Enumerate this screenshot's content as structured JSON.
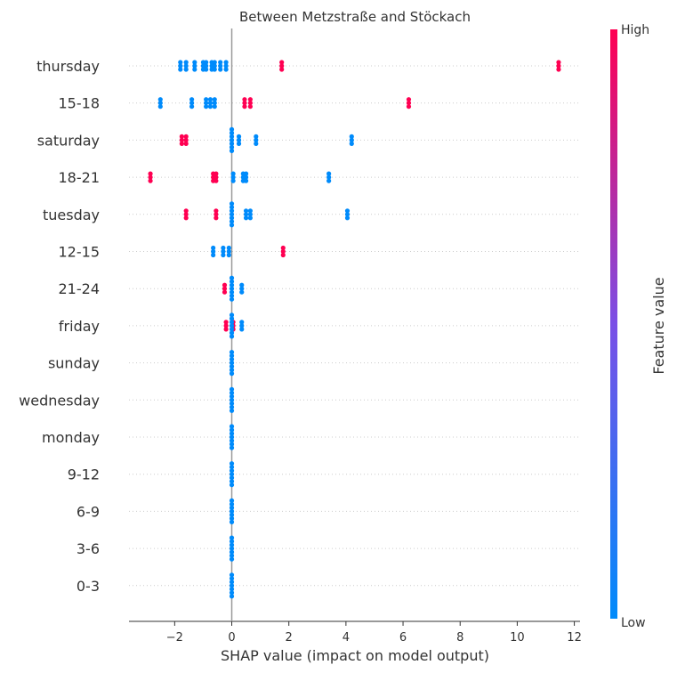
{
  "chart_data": {
    "type": "scatter",
    "title": "Between Metzstraße and Stöckach",
    "xlabel": "SHAP value (impact on model output)",
    "xlim": [
      -3.6,
      12.2
    ],
    "xticks": [
      -2,
      0,
      2,
      4,
      6,
      8,
      10,
      12
    ],
    "colorbar": {
      "label": "Feature value",
      "high": "High",
      "low": "Low",
      "high_color": "#ff0052",
      "low_color": "#008bfb"
    },
    "features": [
      {
        "name": "thursday",
        "points": [
          {
            "x": -1.8,
            "c": "low"
          },
          {
            "x": -1.6,
            "c": "low"
          },
          {
            "x": -1.3,
            "c": "low"
          },
          {
            "x": -1.0,
            "c": "low"
          },
          {
            "x": -0.9,
            "c": "low"
          },
          {
            "x": -0.7,
            "c": "low"
          },
          {
            "x": -0.6,
            "c": "low"
          },
          {
            "x": -0.4,
            "c": "low"
          },
          {
            "x": -0.2,
            "c": "low"
          },
          {
            "x": 1.75,
            "c": "high"
          },
          {
            "x": 11.45,
            "c": "high"
          }
        ]
      },
      {
        "name": "15-18",
        "points": [
          {
            "x": -2.5,
            "c": "low"
          },
          {
            "x": -1.4,
            "c": "low"
          },
          {
            "x": -0.9,
            "c": "low"
          },
          {
            "x": -0.75,
            "c": "low"
          },
          {
            "x": -0.6,
            "c": "low"
          },
          {
            "x": 0.45,
            "c": "high"
          },
          {
            "x": 0.65,
            "c": "high"
          },
          {
            "x": 6.2,
            "c": "high"
          }
        ]
      },
      {
        "name": "saturday",
        "points": [
          {
            "x": -1.75,
            "c": "high"
          },
          {
            "x": -1.6,
            "c": "high"
          },
          {
            "x": 0.0,
            "c": "low"
          },
          {
            "x": 0.25,
            "c": "low"
          },
          {
            "x": 0.85,
            "c": "low"
          },
          {
            "x": 4.2,
            "c": "low"
          }
        ]
      },
      {
        "name": "18-21",
        "points": [
          {
            "x": -2.85,
            "c": "high"
          },
          {
            "x": -0.65,
            "c": "high"
          },
          {
            "x": -0.55,
            "c": "high"
          },
          {
            "x": 0.05,
            "c": "low"
          },
          {
            "x": 0.4,
            "c": "low"
          },
          {
            "x": 0.5,
            "c": "low"
          },
          {
            "x": 3.4,
            "c": "low"
          }
        ]
      },
      {
        "name": "tuesday",
        "points": [
          {
            "x": -1.6,
            "c": "high"
          },
          {
            "x": -0.55,
            "c": "high"
          },
          {
            "x": 0.0,
            "c": "low"
          },
          {
            "x": 0.5,
            "c": "low"
          },
          {
            "x": 0.65,
            "c": "low"
          },
          {
            "x": 4.05,
            "c": "low"
          }
        ]
      },
      {
        "name": "12-15",
        "points": [
          {
            "x": -0.65,
            "c": "low"
          },
          {
            "x": -0.3,
            "c": "low"
          },
          {
            "x": -0.1,
            "c": "low"
          },
          {
            "x": 1.8,
            "c": "high"
          }
        ]
      },
      {
        "name": "21-24",
        "points": [
          {
            "x": -0.25,
            "c": "high"
          },
          {
            "x": 0.0,
            "c": "low"
          },
          {
            "x": 0.35,
            "c": "low"
          }
        ]
      },
      {
        "name": "friday",
        "points": [
          {
            "x": -0.2,
            "c": "high"
          },
          {
            "x": 0.05,
            "c": "high"
          },
          {
            "x": 0.0,
            "c": "low"
          },
          {
            "x": 0.35,
            "c": "low"
          }
        ]
      },
      {
        "name": "sunday",
        "points": [
          {
            "x": 0.0,
            "c": "low"
          }
        ]
      },
      {
        "name": "wednesday",
        "points": [
          {
            "x": 0.0,
            "c": "low"
          }
        ]
      },
      {
        "name": "monday",
        "points": [
          {
            "x": 0.0,
            "c": "low"
          }
        ]
      },
      {
        "name": "9-12",
        "points": [
          {
            "x": 0.0,
            "c": "low"
          }
        ]
      },
      {
        "name": "6-9",
        "points": [
          {
            "x": 0.0,
            "c": "low"
          }
        ]
      },
      {
        "name": "3-6",
        "points": [
          {
            "x": 0.0,
            "c": "low"
          }
        ]
      },
      {
        "name": "0-3",
        "points": [
          {
            "x": 0.0,
            "c": "low"
          }
        ]
      }
    ]
  }
}
